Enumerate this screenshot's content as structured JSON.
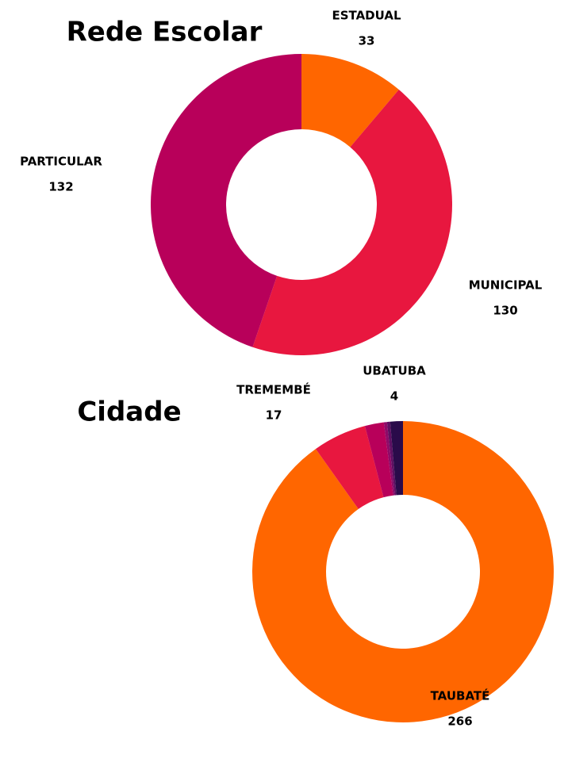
{
  "chart_data": [
    {
      "type": "donut",
      "title": "Rede Escolar",
      "categories": [
        "ESTADUAL",
        "MUNICIPAL",
        "PARTICULAR"
      ],
      "values": [
        33,
        130,
        132
      ],
      "colors": [
        "#ff6600",
        "#e8173f",
        "#b8005a"
      ]
    },
    {
      "type": "donut",
      "title": "Cidade",
      "categories": [
        "TAUBATÉ",
        "TREMEMBÉ",
        null,
        null,
        null,
        "UBATUBA"
      ],
      "values": [
        266,
        17,
        6,
        1,
        1,
        4
      ],
      "colors": [
        "#ff6600",
        "#e8173f",
        "#b8005a",
        "#8e0a68",
        "#5e1062",
        "#2a0b4a"
      ]
    }
  ]
}
